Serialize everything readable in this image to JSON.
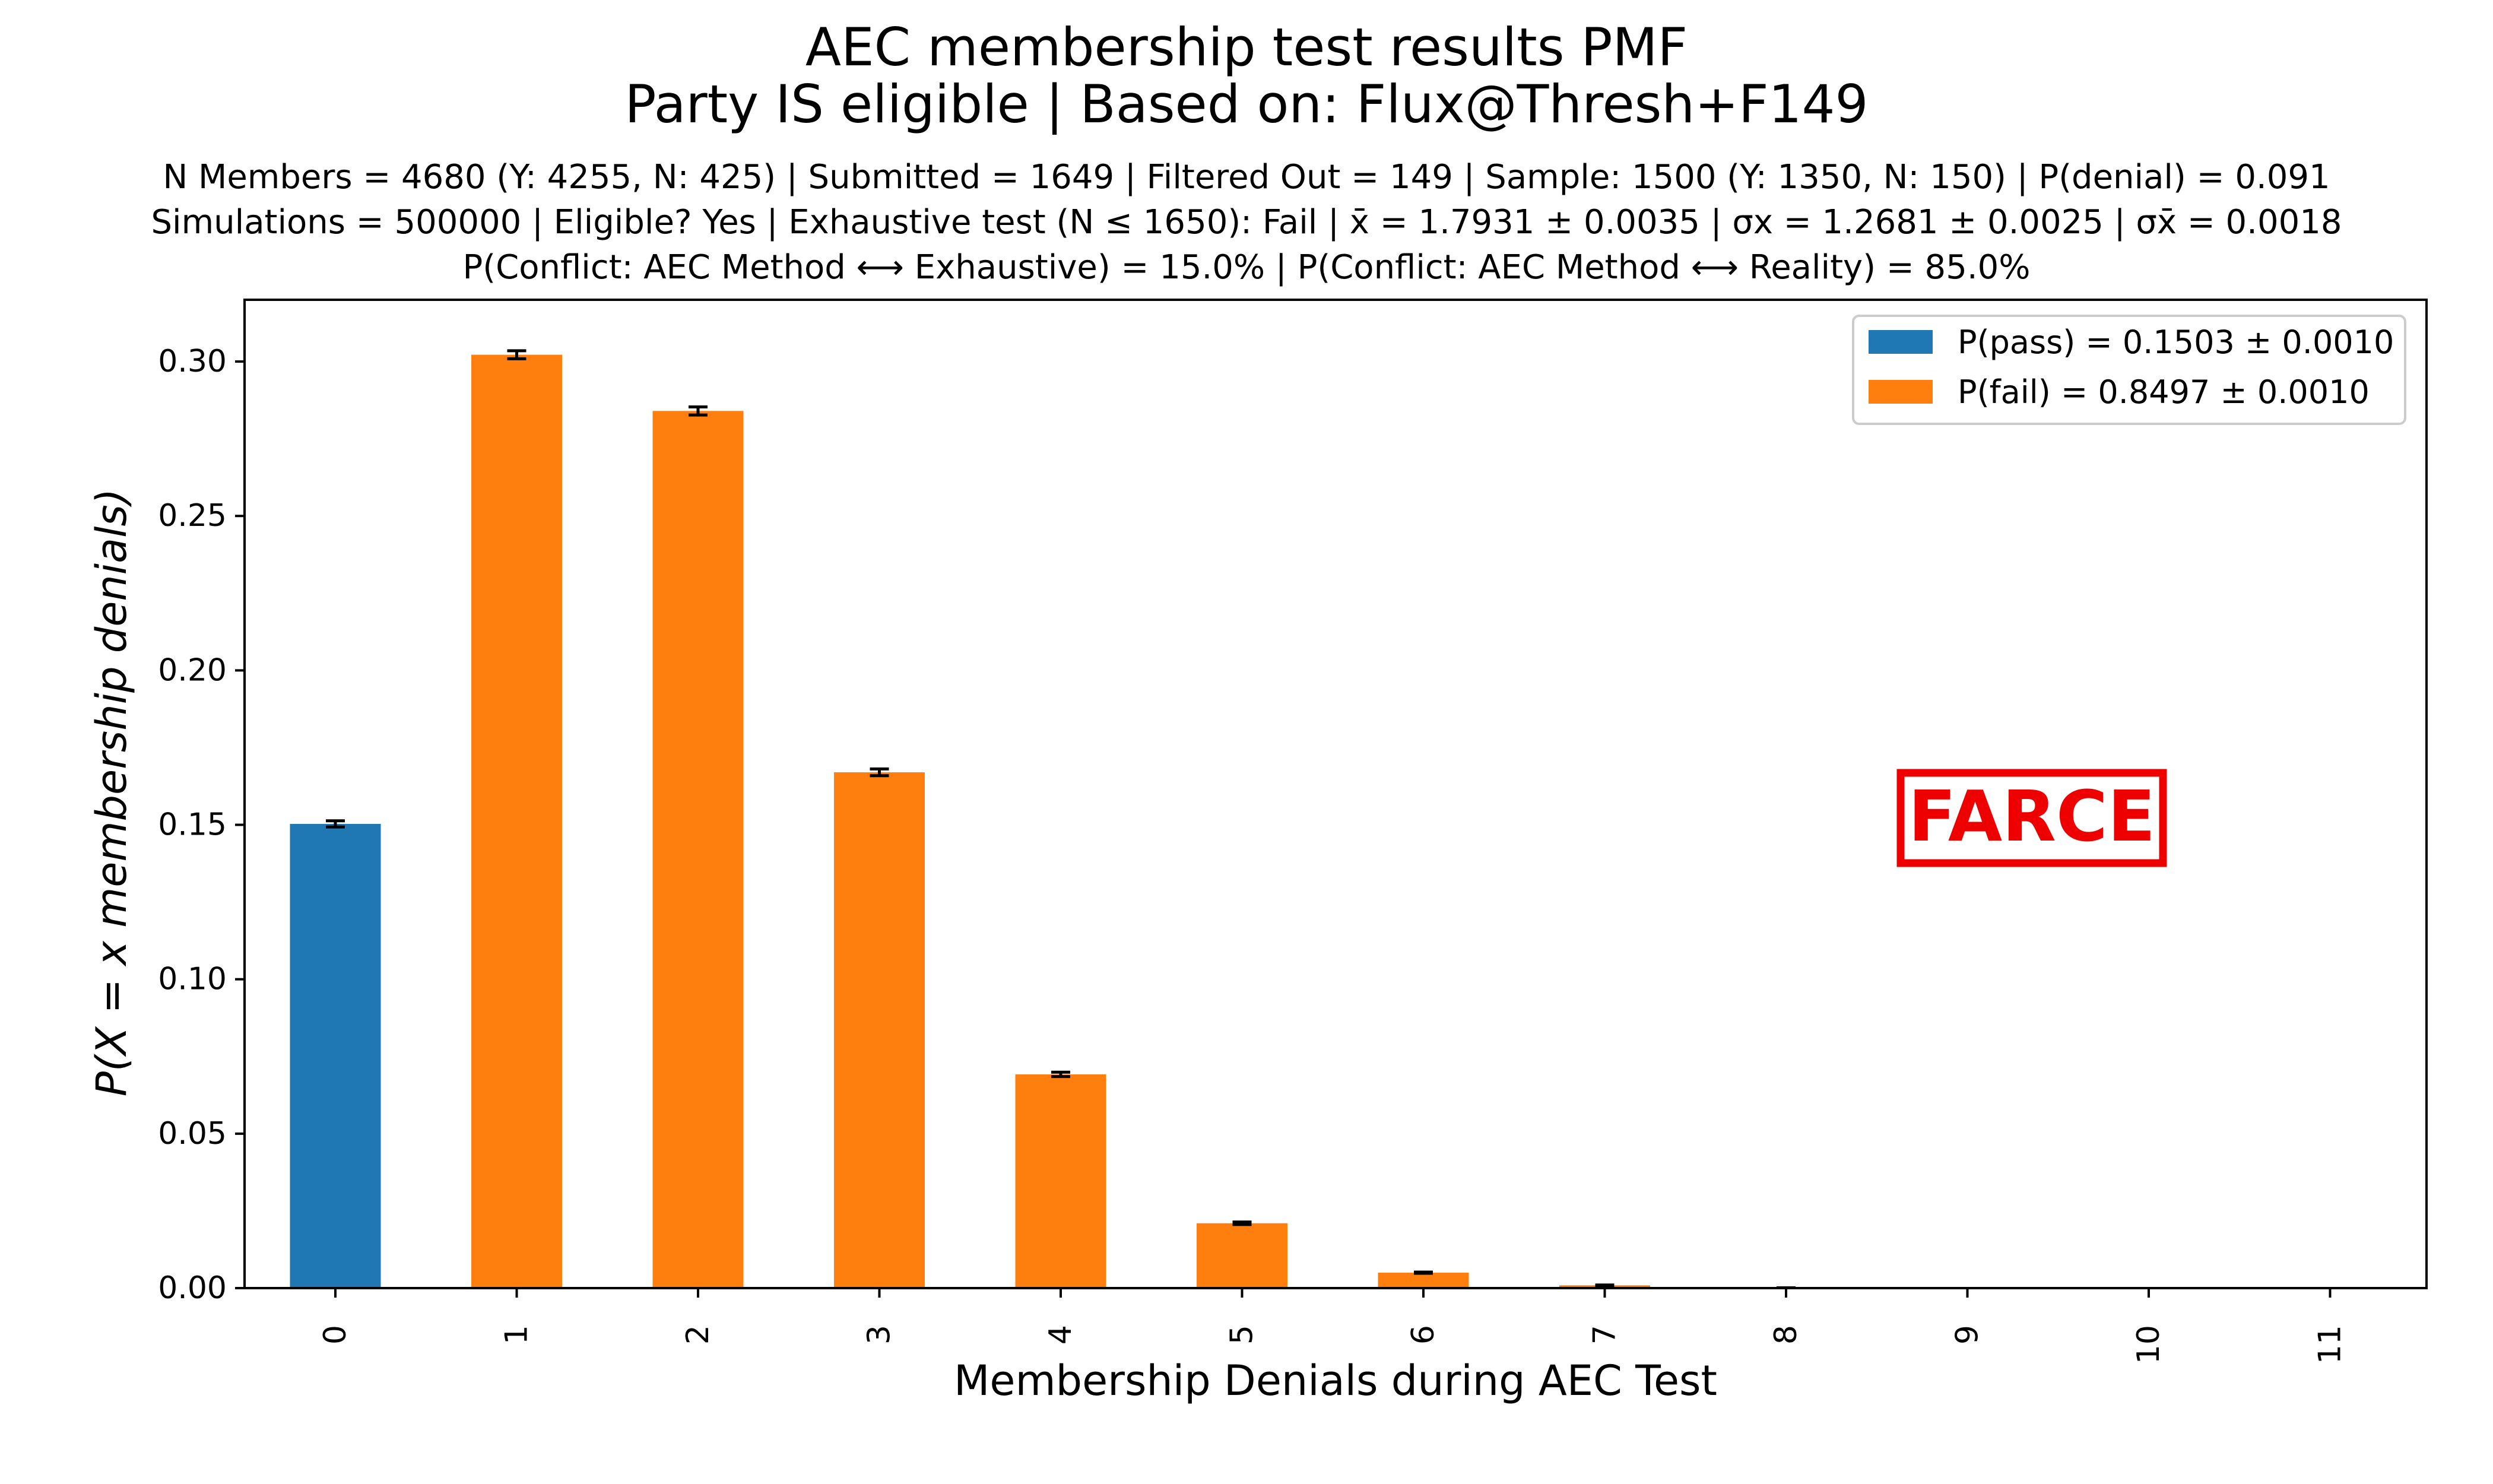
{
  "chart_data": {
    "type": "bar",
    "title": "AEC membership test results PMF",
    "subtitle": "Party IS eligible | Based on: Flux@Thresh+F149",
    "info_lines": [
      "N Members = 4680 (Y: 4255, N: 425) | Submitted = 1649 | Filtered Out = 149 | Sample: 1500 (Y: 1350, N: 150) | P(denial) = 0.091",
      "Simulations = 500000 | Eligible? Yes | Exhaustive test (N ≤ 1650): Fail | x̄ = 1.7931 ± 0.0035 | σx = 1.2681 ± 0.0025 | σx̄ = 0.0018",
      "P(Conflict: AEC Method ⟷ Exhaustive) = 15.0% | P(Conflict: AEC Method ⟷ Reality) = 85.0%"
    ],
    "xlabel": "Membership Denials during AEC Test",
    "ylabel": "P(X = x membership denials)",
    "categories": [
      "0",
      "1",
      "2",
      "3",
      "4",
      "5",
      "6",
      "7",
      "8",
      "9",
      "10",
      "11"
    ],
    "values": [
      0.1503,
      0.3022,
      0.284,
      0.167,
      0.0692,
      0.021,
      0.005,
      0.0009,
      0.0001,
      0.0,
      0.0,
      0.0
    ],
    "errors": [
      0.001,
      0.0013,
      0.0013,
      0.0011,
      0.0007,
      0.0004,
      0.0002,
      0.0001,
      0.0,
      0.0,
      0.0,
      0.0
    ],
    "bar_groups": [
      "pass",
      "fail",
      "fail",
      "fail",
      "fail",
      "fail",
      "fail",
      "fail",
      "fail",
      "fail",
      "fail",
      "fail"
    ],
    "ylim": [
      0,
      0.32
    ],
    "yticks": [
      "0.00",
      "0.05",
      "0.10",
      "0.15",
      "0.20",
      "0.25",
      "0.30"
    ],
    "ytick_values": [
      0,
      0.05,
      0.1,
      0.15,
      0.2,
      0.25,
      0.3
    ],
    "legend": [
      {
        "label": "P(pass) = 0.1503 ± 0.0010",
        "color": "#1f77b4"
      },
      {
        "label": "P(fail) = 0.8497 ± 0.0010",
        "color": "#ff7f0e"
      }
    ],
    "legend_position": "top-right",
    "grid": false,
    "stamp": "FARCE",
    "stamp_color": "#ee0000"
  }
}
